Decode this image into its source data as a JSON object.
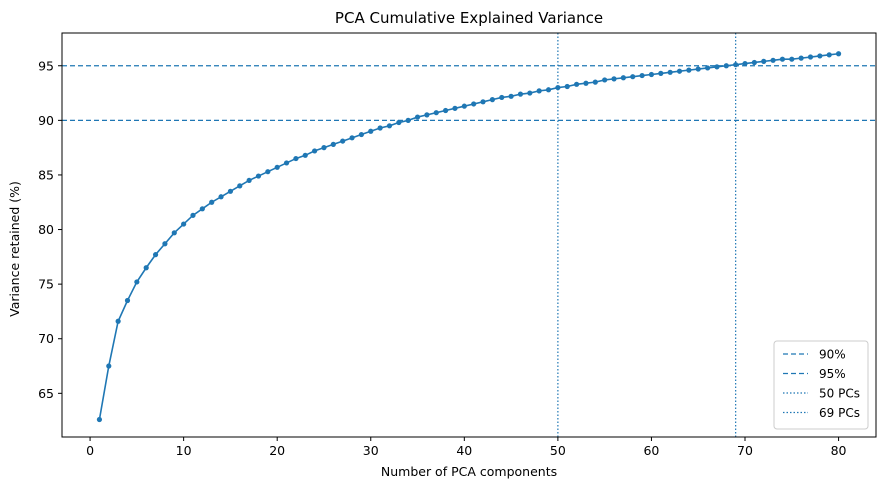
{
  "chart_data": {
    "type": "line",
    "title": "PCA Cumulative Explained Variance",
    "xlabel": "Number of PCA components",
    "ylabel": "Variance retained (%)",
    "xlim": [
      -3.0,
      84.0
    ],
    "ylim": [
      61.0,
      98.0
    ],
    "xticks": [
      0,
      10,
      20,
      30,
      40,
      50,
      60,
      70,
      80
    ],
    "yticks": [
      65,
      70,
      75,
      80,
      85,
      90,
      95
    ],
    "grid": false,
    "legend_position": "lower-right",
    "series": [
      {
        "x": [
          1,
          2,
          3,
          4,
          5,
          6,
          7,
          8,
          9,
          10,
          11,
          12,
          13,
          14,
          15,
          16,
          17,
          18,
          19,
          20,
          21,
          22,
          23,
          24,
          25,
          26,
          27,
          28,
          29,
          30,
          31,
          32,
          33,
          34,
          35,
          36,
          37,
          38,
          39,
          40,
          41,
          42,
          43,
          44,
          45,
          46,
          47,
          48,
          49,
          50,
          51,
          52,
          53,
          54,
          55,
          56,
          57,
          58,
          59,
          60,
          61,
          62,
          63,
          64,
          65,
          66,
          67,
          68,
          69,
          70,
          71,
          72,
          73,
          74,
          75,
          76,
          77,
          78,
          79,
          80
        ],
        "values": [
          62.6,
          67.5,
          71.6,
          73.5,
          75.2,
          76.5,
          77.7,
          78.7,
          79.7,
          80.5,
          81.3,
          81.9,
          82.5,
          83.0,
          83.5,
          84.0,
          84.5,
          84.9,
          85.3,
          85.7,
          86.1,
          86.5,
          86.8,
          87.2,
          87.5,
          87.8,
          88.1,
          88.4,
          88.7,
          89.0,
          89.3,
          89.5,
          89.8,
          90.0,
          90.3,
          90.5,
          90.7,
          90.9,
          91.1,
          91.3,
          91.5,
          91.7,
          91.9,
          92.1,
          92.2,
          92.4,
          92.5,
          92.7,
          92.8,
          93.0,
          93.1,
          93.3,
          93.4,
          93.5,
          93.7,
          93.8,
          93.9,
          94.0,
          94.1,
          94.2,
          94.3,
          94.4,
          94.5,
          94.6,
          94.7,
          94.8,
          94.9,
          95.0,
          95.1,
          95.2,
          95.3,
          95.4,
          95.5,
          95.6,
          95.6,
          95.7,
          95.8,
          95.9,
          96.0,
          96.1
        ],
        "color": "#1f77b4"
      }
    ],
    "hlines": [
      {
        "y": 90,
        "label": "90%",
        "style": "dashed",
        "color": "#1f77b4"
      },
      {
        "y": 95,
        "label": "95%",
        "style": "dashed",
        "color": "#1f77b4"
      }
    ],
    "vlines": [
      {
        "x": 50,
        "label": "50 PCs",
        "style": "dotted",
        "color": "#1f77b4"
      },
      {
        "x": 69,
        "label": "69 PCs",
        "style": "dotted",
        "color": "#1f77b4"
      }
    ]
  }
}
